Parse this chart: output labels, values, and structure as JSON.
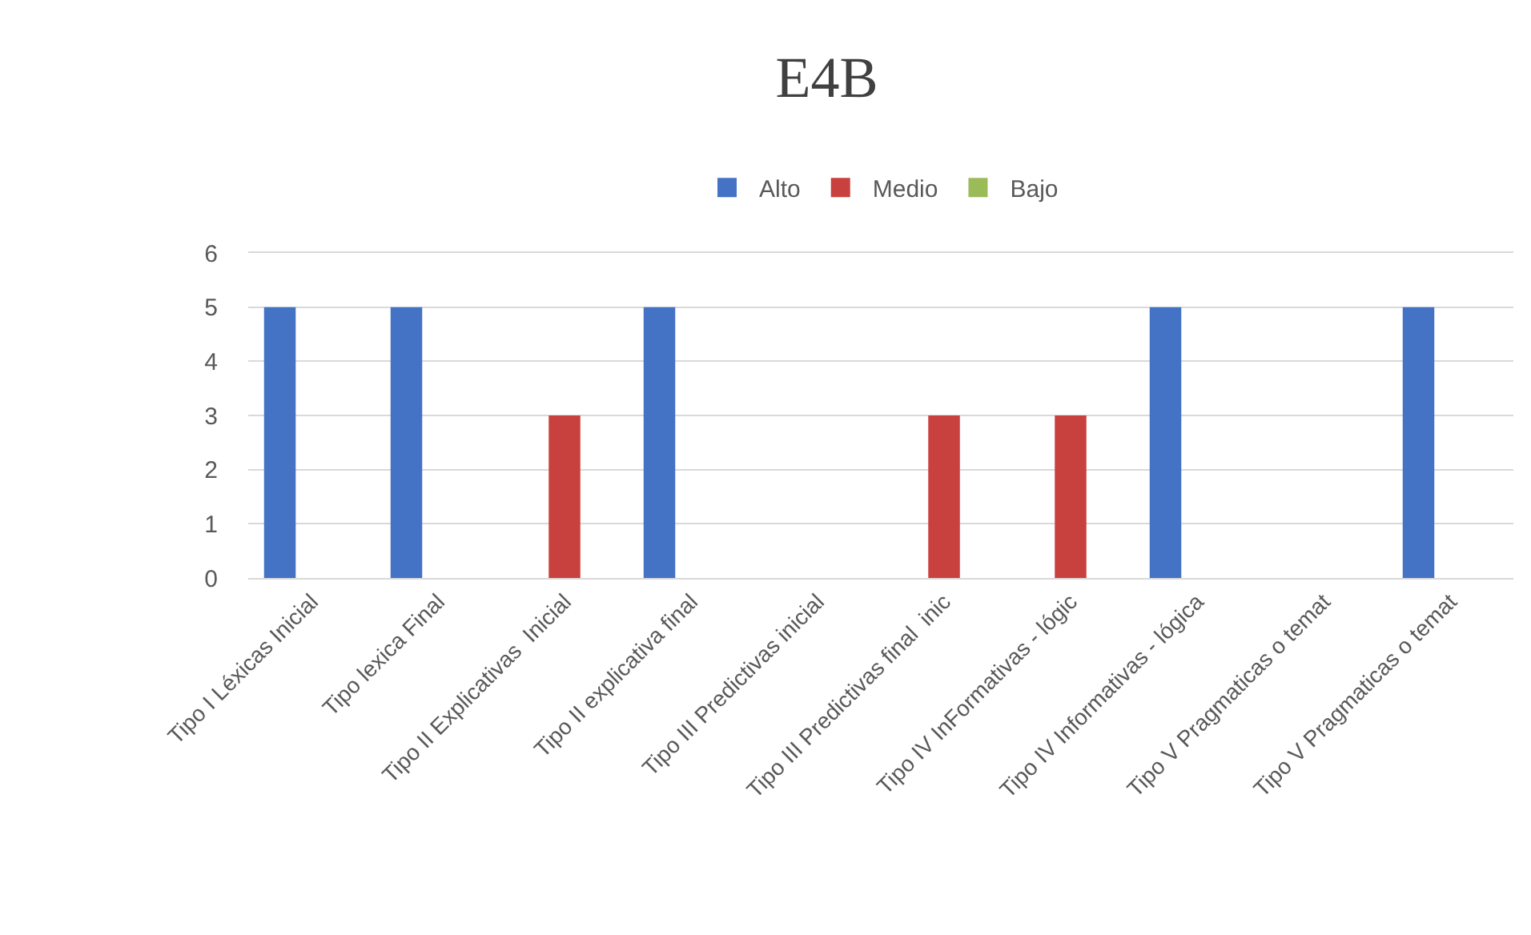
{
  "chart_data": {
    "type": "bar",
    "title": "E4B",
    "categories": [
      "Tipo I Léxicas Inicial",
      "Tipo lexica Final",
      "Tipo II Explicativas  Inicial",
      "Tipo II explicativa final",
      "Tipo III Predictivas inicial",
      "Tipo III Predictivas final  inic",
      "Tipo IV InFormativas - lógic",
      "Tipo IV Informativas - lógica",
      "Tipo V Pragmaticas o temat",
      "Tipo V Pragmaticas o temat"
    ],
    "series": [
      {
        "name": "Alto",
        "color": "#4472c4",
        "values": [
          5,
          5,
          null,
          5,
          null,
          null,
          null,
          5,
          null,
          5
        ]
      },
      {
        "name": "Medio",
        "color": "#c9413f",
        "values": [
          null,
          null,
          3,
          null,
          null,
          3,
          3,
          null,
          null,
          null
        ]
      },
      {
        "name": "Bajo",
        "color": "#9bbb59",
        "values": [
          null,
          null,
          null,
          null,
          null,
          null,
          null,
          null,
          null,
          null
        ]
      }
    ],
    "ylim": [
      0,
      6
    ],
    "yticks": [
      0,
      1,
      2,
      3,
      4,
      5,
      6
    ],
    "grid": "y",
    "legend": "top"
  }
}
